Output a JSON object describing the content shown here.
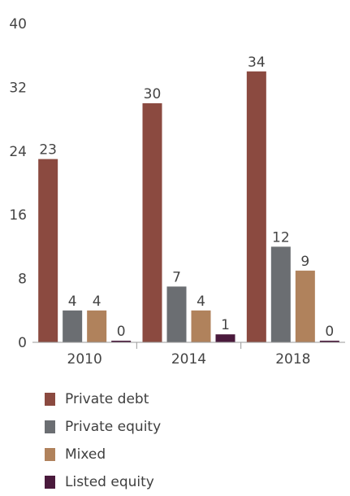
{
  "chart_data": {
    "type": "bar",
    "categories": [
      "2010",
      "2014",
      "2018"
    ],
    "series": [
      {
        "name": "Private debt",
        "values": [
          23,
          30,
          34
        ],
        "color": "#8b4a40"
      },
      {
        "name": "Private equity",
        "values": [
          4,
          7,
          12
        ],
        "color": "#6b6e72"
      },
      {
        "name": "Mixed",
        "values": [
          4,
          4,
          9
        ],
        "color": "#b0825c"
      },
      {
        "name": "Listed equity",
        "values": [
          0,
          1,
          0
        ],
        "color": "#4a1a3c"
      }
    ],
    "ylim": [
      0,
      40
    ],
    "yticks": [
      "0",
      "8",
      "16",
      "24",
      "32",
      "40"
    ],
    "grid": false,
    "legend_position": "bottom-left"
  }
}
